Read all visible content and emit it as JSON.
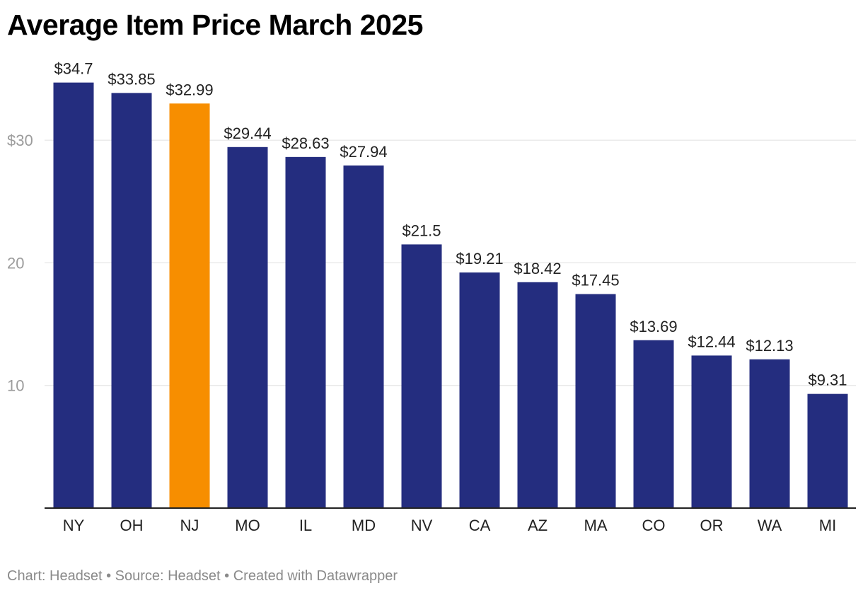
{
  "footer": "Chart: Headset • Source: Headset • Created with Datawrapper",
  "colors": {
    "bar": "#242d7f",
    "highlight": "#f78e00",
    "grid": "#e0e0e0",
    "axis": "#222222"
  },
  "chart_data": {
    "type": "bar",
    "title": "Average Item Price March 2025",
    "xlabel": "",
    "ylabel": "",
    "ylim": [
      0,
      36
    ],
    "yticks": [
      {
        "value": 10,
        "label": "10"
      },
      {
        "value": 20,
        "label": "20"
      },
      {
        "value": 30,
        "label": "$30"
      }
    ],
    "categories": [
      "NY",
      "OH",
      "NJ",
      "MO",
      "IL",
      "MD",
      "NV",
      "CA",
      "AZ",
      "MA",
      "CO",
      "OR",
      "WA",
      "MI"
    ],
    "values": [
      34.7,
      33.85,
      32.99,
      29.44,
      28.63,
      27.94,
      21.5,
      19.21,
      18.42,
      17.45,
      13.69,
      12.44,
      12.13,
      9.31
    ],
    "data_labels": [
      "$34.7",
      "$33.85",
      "$32.99",
      "$29.44",
      "$28.63",
      "$27.94",
      "$21.5",
      "$19.21",
      "$18.42",
      "$17.45",
      "$13.69",
      "$12.44",
      "$12.13",
      "$9.31"
    ],
    "highlight": "NJ"
  }
}
